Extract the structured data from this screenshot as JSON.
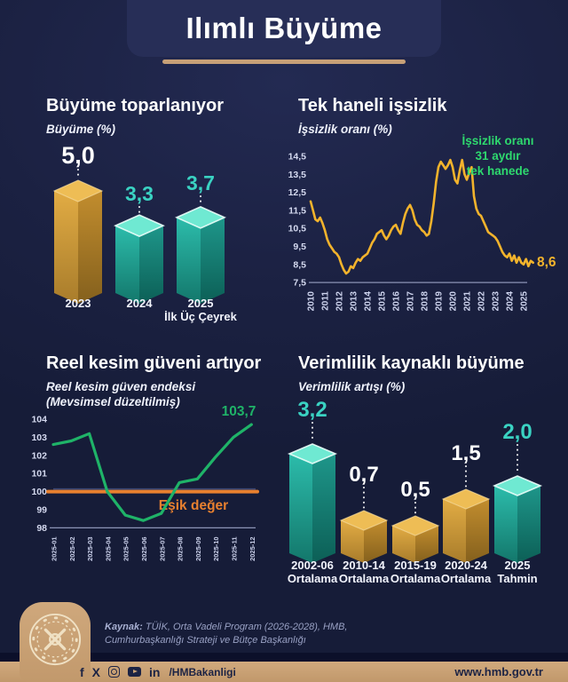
{
  "header": {
    "title": "Ilımlı Büyüme"
  },
  "page": {
    "bg": "#1b2142",
    "accent_tan": "#c7a077",
    "accent_teal": "#3ad2c2",
    "accent_green": "#2ed96e",
    "accent_yellow": "#f2b32c",
    "accent_orange": "#e8802f",
    "palette": {
      "gold": {
        "left": [
          "#e2ac44",
          "#a87c2b"
        ],
        "right": [
          "#c28d2e",
          "#84601d"
        ],
        "top": "#eebd55",
        "stroke": "#ffe5a8"
      },
      "teal": {
        "left": [
          "#2cbcab",
          "#13776b"
        ],
        "right": [
          "#1e968a",
          "#0c5f56"
        ],
        "top": "#6fe9d2",
        "stroke": "#ecfffb"
      }
    }
  },
  "panels": {
    "growth": {
      "title_regular": "Büyüme ",
      "title_bold": "toparlanıyor",
      "subtitle": "Büyüme (%)"
    },
    "unemployment": {
      "title_regular": "Tek haneli ",
      "title_bold": "işsizlik",
      "subtitle": "İşsizlik oranı (%)",
      "annotation_line1": "İşsizlik oranı",
      "annotation_line2": "31 aydır",
      "annotation_line3": "tek hanede"
    },
    "confidence": {
      "title_regular": "Reel kesim güveni ",
      "title_bold": "artıyor",
      "subtitle_line1": "Reel kesim güven endeksi",
      "subtitle_line2": "(Mevsimsel düzeltilmiş)"
    },
    "productivity": {
      "title_regular": "Verimlilik kaynaklı ",
      "title_bold": "büyüme",
      "subtitle": "Verimlilik artışı (%)"
    }
  },
  "footer": {
    "source_label": "Kaynak:",
    "source_line1": " TÜİK, Orta Vadeli Program (2026-2028), HMB,",
    "source_line2": "Cumhurbaşkanlığı Strateji ve Bütçe Başkanlığı",
    "icons": [
      "facebook-icon",
      "x-icon",
      "instagram-icon",
      "youtube-icon",
      "linkedin-icon"
    ],
    "icon_glyphs": {
      "facebook": "f",
      "x": "X",
      "linkedin": "in"
    },
    "social_handle": "/HMBakanligi",
    "website_prefix": "www.",
    "website_bold": "hmb",
    "website_suffix": ".gov.tr"
  },
  "chart_data": [
    {
      "type": "bar",
      "style": "3d",
      "title": "Büyüme toparlanıyor",
      "subtitle": "Büyüme (%)",
      "categories": [
        "2023",
        "2024",
        "2025 İlk Üç Çeyrek"
      ],
      "category_lines": [
        [
          "2023"
        ],
        [
          "2024"
        ],
        [
          "2025",
          "İlk Üç Çeyrek"
        ]
      ],
      "values": [
        5.0,
        3.3,
        3.7
      ],
      "value_labels": [
        "5,0",
        "3,3",
        "3,7"
      ],
      "bar_colors": [
        "gold",
        "teal",
        "teal"
      ],
      "label_colors": [
        "#ffffff",
        "#3ad2c2",
        "#3ad2c2"
      ]
    },
    {
      "type": "line",
      "title": "Tek haneli işsizlik",
      "subtitle": "İşsizlik oranı (%)",
      "annotation": "İşsizlik oranı 31 aydır tek hanede",
      "ylim": [
        7.5,
        14.5
      ],
      "y_ticks": [
        "14,5",
        "13,5",
        "12,5",
        "11,5",
        "10,5",
        "9,5",
        "8,5",
        "7,5"
      ],
      "y_tick_values": [
        14.5,
        13.5,
        12.5,
        11.5,
        10.5,
        9.5,
        8.5,
        7.5
      ],
      "x_ticks": [
        "2010",
        "2011",
        "2012",
        "2013",
        "2014",
        "2015",
        "2016",
        "2017",
        "2018",
        "2019",
        "2020",
        "2021",
        "2022",
        "2023",
        "2024",
        "2025"
      ],
      "x_start": "2010-01",
      "interval_months": 2,
      "end_label": "8,6",
      "end_value": 8.6,
      "series": [
        {
          "name": "İşsizlik oranı",
          "color": "#f2b32c",
          "values": [
            12.0,
            11.5,
            11.0,
            10.9,
            11.1,
            10.8,
            10.4,
            9.9,
            9.6,
            9.4,
            9.2,
            9.1,
            8.9,
            8.5,
            8.2,
            8.0,
            8.1,
            8.4,
            8.3,
            8.6,
            8.8,
            8.7,
            8.9,
            9.0,
            9.1,
            9.4,
            9.7,
            9.9,
            10.2,
            10.3,
            10.4,
            10.1,
            9.9,
            10.1,
            10.4,
            10.6,
            10.7,
            10.4,
            10.2,
            10.8,
            11.3,
            11.6,
            11.8,
            11.5,
            11.0,
            10.7,
            10.6,
            10.4,
            10.3,
            10.1,
            10.2,
            10.9,
            11.9,
            13.1,
            13.9,
            14.2,
            14.0,
            13.8,
            14.0,
            14.3,
            13.9,
            13.2,
            13.0,
            13.7,
            14.3,
            13.5,
            13.2,
            13.6,
            13.9,
            12.3,
            11.6,
            11.3,
            11.2,
            10.9,
            10.6,
            10.3,
            10.2,
            10.1,
            10.0,
            9.8,
            9.5,
            9.2,
            9.0,
            8.9,
            9.1,
            8.7,
            9.0,
            8.6,
            8.9,
            8.6,
            8.5,
            8.8,
            8.4,
            8.7,
            8.6
          ]
        }
      ]
    },
    {
      "type": "line",
      "title": "Reel kesim güveni artıyor",
      "subtitle": "Reel kesim güven endeksi (Mevsimsel düzeltilmiş)",
      "ylim": [
        98,
        104
      ],
      "y_ticks": [
        "104",
        "103",
        "102",
        "101",
        "100",
        "99",
        "98"
      ],
      "y_tick_values": [
        104,
        103,
        102,
        101,
        100,
        99,
        98
      ],
      "x_ticks": [
        "2025-01",
        "2025-02",
        "2025-03",
        "2025-04",
        "2025-05",
        "2025-06",
        "2025-07",
        "2025-08",
        "2025-09",
        "2025-10",
        "2025-11",
        "2025-12"
      ],
      "threshold": {
        "value": 100,
        "label": "Eşik değer",
        "color": "#e8802f"
      },
      "end_label": "103,7",
      "end_value": 103.7,
      "series": [
        {
          "name": "Reel kesim güven endeksi",
          "color_above": "#1fb368",
          "color_below": "#7fa8e6",
          "split_at": 100,
          "values": [
            102.6,
            102.8,
            103.2,
            100.0,
            98.7,
            98.4,
            98.8,
            100.5,
            100.7,
            101.9,
            103.0,
            103.7
          ]
        }
      ]
    },
    {
      "type": "bar",
      "style": "3d",
      "title": "Verimlilik kaynaklı büyüme",
      "subtitle": "Verimlilik artışı (%)",
      "categories": [
        "2002-06 Ortalama",
        "2010-14 Ortalama",
        "2015-19 Ortalama",
        "2020-24 Ortalama",
        "2025 Tahmin"
      ],
      "category_lines": [
        [
          "2002-06",
          "Ortalama"
        ],
        [
          "2010-14",
          "Ortalama"
        ],
        [
          "2015-19",
          "Ortalama"
        ],
        [
          "2020-24",
          "Ortalama"
        ],
        [
          "2025",
          "Tahmin"
        ]
      ],
      "values": [
        3.2,
        0.7,
        0.5,
        1.5,
        2.0
      ],
      "value_labels": [
        "3,2",
        "0,7",
        "0,5",
        "1,5",
        "2,0"
      ],
      "bar_colors": [
        "teal",
        "gold",
        "gold",
        "gold",
        "teal"
      ],
      "label_colors": [
        "#3ad2c2",
        "#ffffff",
        "#ffffff",
        "#ffffff",
        "#3ad2c2"
      ]
    }
  ]
}
